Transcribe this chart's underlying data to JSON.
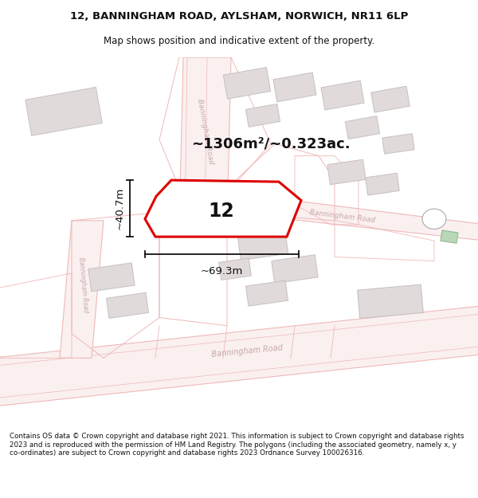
{
  "title_line1": "12, BANNINGHAM ROAD, AYLSHAM, NORWICH, NR11 6LP",
  "title_line2": "Map shows position and indicative extent of the property.",
  "footer_text": "Contains OS data © Crown copyright and database right 2021. This information is subject to Crown copyright and database rights 2023 and is reproduced with the permission of HM Land Registry. The polygons (including the associated geometry, namely x, y co-ordinates) are subject to Crown copyright and database rights 2023 Ordnance Survey 100026316.",
  "area_text": "~1306m²/~0.323ac.",
  "property_number": "12",
  "width_label": "~69.3m",
  "height_label": "~40.7m",
  "map_bg": "#ffffff",
  "road_line_color": "#f0b8b8",
  "road_fill_color": "#faf0f0",
  "road_label_color": "#c8a8a8",
  "building_fill": "#e0dada",
  "building_edge": "#c8c0c0",
  "parcel_line_color": "#f0b8b8",
  "property_fill": "#ffffff",
  "property_stroke": "#dd0000",
  "dim_color": "#111111",
  "text_color": "#111111",
  "green_color": "#b8d8b8",
  "green_edge": "#90b890"
}
